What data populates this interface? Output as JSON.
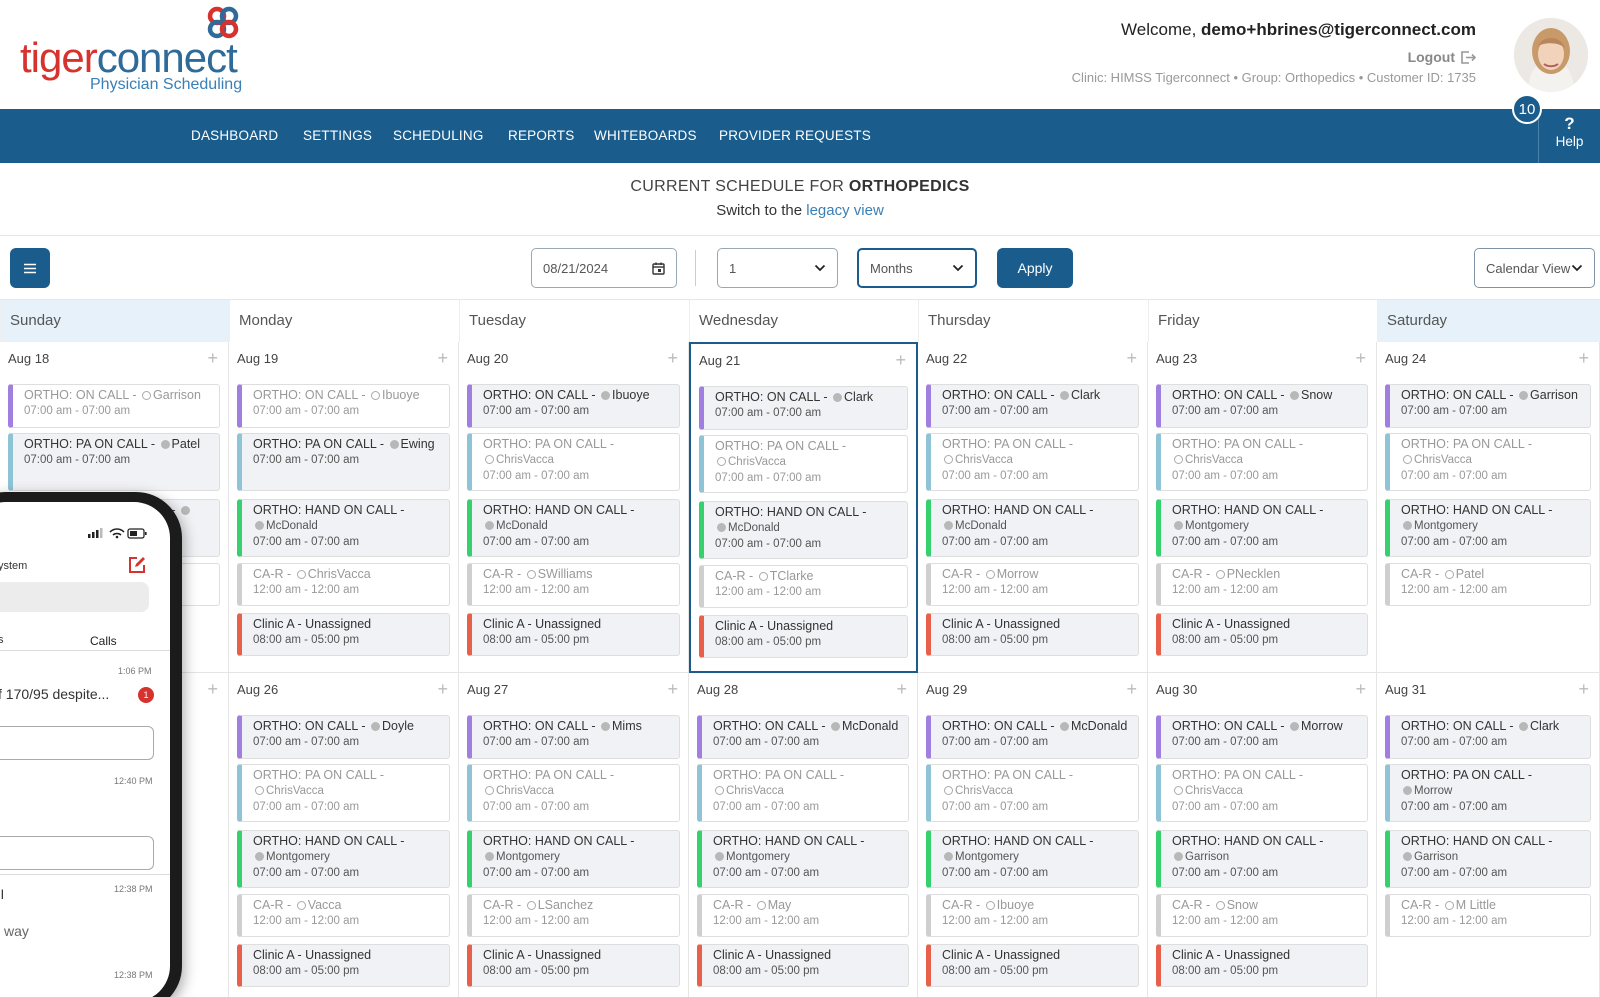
{
  "brand": {
    "name_part1": "tiger",
    "name_part2": "connect",
    "subtitle": "Physician Scheduling"
  },
  "user": {
    "welcome_prefix": "Welcome, ",
    "email": "demo+hbrines@tigerconnect.com",
    "logout_label": "Logout",
    "clinic_info": "Clinic: HIMSS Tigerconnect • Group: Orthopedics • Customer ID: 1735",
    "notification_count": "10"
  },
  "nav": {
    "items": [
      "DASHBOARD",
      "SETTINGS",
      "SCHEDULING",
      "REPORTS",
      "WHITEBOARDS",
      "PROVIDER REQUESTS"
    ],
    "help_label": "Help"
  },
  "page": {
    "title_prefix": "CURRENT SCHEDULE FOR ",
    "title_group": "ORTHOPEDICS",
    "switch_prefix": "Switch to the ",
    "switch_link": "legacy view"
  },
  "toolbar": {
    "date_value": "08/21/2024",
    "count_value": "1",
    "period_value": "Months",
    "apply_label": "Apply",
    "view_value": "Calendar View"
  },
  "colors": {
    "purple": "#a07fe0",
    "teal": "#8fc3d6",
    "green": "#37d06e",
    "gray": "#cfcfcf",
    "red": "#e8604a",
    "navy": "#1a5d8d"
  },
  "calendar": {
    "days": [
      "Sunday",
      "Monday",
      "Tuesday",
      "Wednesday",
      "Thursday",
      "Friday",
      "Saturday"
    ],
    "today_index": 3,
    "weeks": [
      [
        {
          "date": "Aug 18",
          "events": [
            {
              "title": "ORTHO: ON CALL -",
              "provider": "Garrison",
              "inline": true,
              "time": "07:00 am - 07:00 am",
              "color": "purple",
              "style": "empty",
              "dot": "o"
            },
            {
              "title": "ORTHO: PA ON CALL -",
              "provider": "Patel",
              "inline": true,
              "time": "07:00 am - 07:00 am",
              "color": "teal",
              "style": "filled",
              "dot": "g"
            },
            {
              "title": "ORTHO: HAND ON CALL -",
              "provider": "",
              "inline": true,
              "time": "",
              "color": "green",
              "style": "filled",
              "dot": "g"
            },
            {
              "title": "",
              "provider": "",
              "inline": true,
              "time": "",
              "color": "gray",
              "style": "empty",
              "dot": "o"
            }
          ]
        },
        {
          "date": "Aug 19",
          "events": [
            {
              "title": "ORTHO: ON CALL -",
              "provider": "Ibuoye",
              "inline": true,
              "time": "07:00 am - 07:00 am",
              "color": "purple",
              "style": "empty",
              "dot": "o"
            },
            {
              "title": "ORTHO: PA ON CALL -",
              "provider": "Ewing",
              "inline": true,
              "time": "07:00 am - 07:00 am",
              "color": "teal",
              "style": "filled",
              "dot": "g"
            },
            {
              "title": "ORTHO: HAND ON CALL -",
              "provider": "McDonald",
              "inline": false,
              "time": "07:00 am - 07:00 am",
              "color": "green",
              "style": "filled",
              "dot": "g"
            },
            {
              "title": "CA-R -",
              "provider": "ChrisVacca",
              "inline": true,
              "time": "12:00 am - 12:00 am",
              "color": "gray",
              "style": "empty",
              "dot": "o"
            },
            {
              "title": "Clinic A - Unassigned",
              "provider": "",
              "inline": true,
              "time": "08:00 am - 05:00 pm",
              "color": "red",
              "style": "filled",
              "dot": ""
            }
          ]
        },
        {
          "date": "Aug 20",
          "events": [
            {
              "title": "ORTHO: ON CALL -",
              "provider": "Ibuoye",
              "inline": true,
              "time": "07:00 am - 07:00 am",
              "color": "purple",
              "style": "filled",
              "dot": "g"
            },
            {
              "title": "ORTHO: PA ON CALL -",
              "provider": "ChrisVacca",
              "inline": false,
              "time": "07:00 am - 07:00 am",
              "color": "teal",
              "style": "empty",
              "dot": "o"
            },
            {
              "title": "ORTHO: HAND ON CALL -",
              "provider": "McDonald",
              "inline": false,
              "time": "07:00 am - 07:00 am",
              "color": "green",
              "style": "filled",
              "dot": "g"
            },
            {
              "title": "CA-R -",
              "provider": "SWilliams",
              "inline": true,
              "time": "12:00 am - 12:00 am",
              "color": "gray",
              "style": "empty",
              "dot": "o"
            },
            {
              "title": "Clinic A - Unassigned",
              "provider": "",
              "inline": true,
              "time": "08:00 am - 05:00 pm",
              "color": "red",
              "style": "filled",
              "dot": ""
            }
          ]
        },
        {
          "date": "Aug 21",
          "events": [
            {
              "title": "ORTHO: ON CALL -",
              "provider": "Clark",
              "inline": true,
              "time": "07:00 am - 07:00 am",
              "color": "purple",
              "style": "filled",
              "dot": "g"
            },
            {
              "title": "ORTHO: PA ON CALL -",
              "provider": "ChrisVacca",
              "inline": false,
              "time": "07:00 am - 07:00 am",
              "color": "teal",
              "style": "empty",
              "dot": "o"
            },
            {
              "title": "ORTHO: HAND ON CALL -",
              "provider": "McDonald",
              "inline": false,
              "time": "07:00 am - 07:00 am",
              "color": "green",
              "style": "filled",
              "dot": "g"
            },
            {
              "title": "CA-R -",
              "provider": "TClarke",
              "inline": true,
              "time": "12:00 am - 12:00 am",
              "color": "gray",
              "style": "empty",
              "dot": "o"
            },
            {
              "title": "Clinic A - Unassigned",
              "provider": "",
              "inline": true,
              "time": "08:00 am - 05:00 pm",
              "color": "red",
              "style": "filled",
              "dot": ""
            }
          ]
        },
        {
          "date": "Aug 22",
          "events": [
            {
              "title": "ORTHO: ON CALL -",
              "provider": "Clark",
              "inline": true,
              "time": "07:00 am - 07:00 am",
              "color": "purple",
              "style": "filled",
              "dot": "g"
            },
            {
              "title": "ORTHO: PA ON CALL -",
              "provider": "ChrisVacca",
              "inline": false,
              "time": "07:00 am - 07:00 am",
              "color": "teal",
              "style": "empty",
              "dot": "o"
            },
            {
              "title": "ORTHO: HAND ON CALL -",
              "provider": "McDonald",
              "inline": false,
              "time": "07:00 am - 07:00 am",
              "color": "green",
              "style": "filled",
              "dot": "g"
            },
            {
              "title": "CA-R -",
              "provider": "Morrow",
              "inline": true,
              "time": "12:00 am - 12:00 am",
              "color": "gray",
              "style": "empty",
              "dot": "o"
            },
            {
              "title": "Clinic A - Unassigned",
              "provider": "",
              "inline": true,
              "time": "08:00 am - 05:00 pm",
              "color": "red",
              "style": "filled",
              "dot": ""
            }
          ]
        },
        {
          "date": "Aug 23",
          "events": [
            {
              "title": "ORTHO: ON CALL -",
              "provider": "Snow",
              "inline": true,
              "time": "07:00 am - 07:00 am",
              "color": "purple",
              "style": "filled",
              "dot": "g"
            },
            {
              "title": "ORTHO: PA ON CALL -",
              "provider": "ChrisVacca",
              "inline": false,
              "time": "07:00 am - 07:00 am",
              "color": "teal",
              "style": "empty",
              "dot": "o"
            },
            {
              "title": "ORTHO: HAND ON CALL -",
              "provider": "Montgomery",
              "inline": false,
              "time": "07:00 am - 07:00 am",
              "color": "green",
              "style": "filled",
              "dot": "g"
            },
            {
              "title": "CA-R -",
              "provider": "PNecklen",
              "inline": true,
              "time": "12:00 am - 12:00 am",
              "color": "gray",
              "style": "empty",
              "dot": "o"
            },
            {
              "title": "Clinic A - Unassigned",
              "provider": "",
              "inline": true,
              "time": "08:00 am - 05:00 pm",
              "color": "red",
              "style": "filled",
              "dot": ""
            }
          ]
        },
        {
          "date": "Aug 24",
          "events": [
            {
              "title": "ORTHO: ON CALL -",
              "provider": "Garrison",
              "inline": true,
              "time": "07:00 am - 07:00 am",
              "color": "purple",
              "style": "filled",
              "dot": "g"
            },
            {
              "title": "ORTHO: PA ON CALL -",
              "provider": "ChrisVacca",
              "inline": false,
              "time": "07:00 am - 07:00 am",
              "color": "teal",
              "style": "empty",
              "dot": "o"
            },
            {
              "title": "ORTHO: HAND ON CALL -",
              "provider": "Montgomery",
              "inline": false,
              "time": "07:00 am - 07:00 am",
              "color": "green",
              "style": "filled",
              "dot": "g"
            },
            {
              "title": "CA-R -",
              "provider": "Patel",
              "inline": true,
              "time": "12:00 am - 12:00 am",
              "color": "gray",
              "style": "empty",
              "dot": "o"
            }
          ]
        }
      ],
      [
        {
          "date": "",
          "events": []
        },
        {
          "date": "Aug 26",
          "events": [
            {
              "title": "ORTHO: ON CALL -",
              "provider": "Doyle",
              "inline": true,
              "time": "07:00 am - 07:00 am",
              "color": "purple",
              "style": "filled",
              "dot": "g"
            },
            {
              "title": "ORTHO: PA ON CALL -",
              "provider": "ChrisVacca",
              "inline": false,
              "time": "07:00 am - 07:00 am",
              "color": "teal",
              "style": "empty",
              "dot": "o"
            },
            {
              "title": "ORTHO: HAND ON CALL -",
              "provider": "Montgomery",
              "inline": false,
              "time": "07:00 am - 07:00 am",
              "color": "green",
              "style": "filled",
              "dot": "g"
            },
            {
              "title": "CA-R -",
              "provider": "Vacca",
              "inline": true,
              "time": "12:00 am - 12:00 am",
              "color": "gray",
              "style": "empty",
              "dot": "o"
            },
            {
              "title": "Clinic A - Unassigned",
              "provider": "",
              "inline": true,
              "time": "08:00 am - 05:00 pm",
              "color": "red",
              "style": "filled",
              "dot": ""
            }
          ]
        },
        {
          "date": "Aug 27",
          "events": [
            {
              "title": "ORTHO: ON CALL -",
              "provider": "Mims",
              "inline": true,
              "time": "07:00 am - 07:00 am",
              "color": "purple",
              "style": "filled",
              "dot": "g"
            },
            {
              "title": "ORTHO: PA ON CALL -",
              "provider": "ChrisVacca",
              "inline": false,
              "time": "07:00 am - 07:00 am",
              "color": "teal",
              "style": "empty",
              "dot": "o"
            },
            {
              "title": "ORTHO: HAND ON CALL -",
              "provider": "Montgomery",
              "inline": false,
              "time": "07:00 am - 07:00 am",
              "color": "green",
              "style": "filled",
              "dot": "g"
            },
            {
              "title": "CA-R -",
              "provider": "LSanchez",
              "inline": true,
              "time": "12:00 am - 12:00 am",
              "color": "gray",
              "style": "empty",
              "dot": "o"
            },
            {
              "title": "Clinic A - Unassigned",
              "provider": "",
              "inline": true,
              "time": "08:00 am - 05:00 pm",
              "color": "red",
              "style": "filled",
              "dot": ""
            }
          ]
        },
        {
          "date": "Aug 28",
          "events": [
            {
              "title": "ORTHO: ON CALL -",
              "provider": "McDonald",
              "inline": true,
              "time": "07:00 am - 07:00 am",
              "color": "purple",
              "style": "filled",
              "dot": "g"
            },
            {
              "title": "ORTHO: PA ON CALL -",
              "provider": "ChrisVacca",
              "inline": false,
              "time": "07:00 am - 07:00 am",
              "color": "teal",
              "style": "empty",
              "dot": "o"
            },
            {
              "title": "ORTHO: HAND ON CALL -",
              "provider": "Montgomery",
              "inline": false,
              "time": "07:00 am - 07:00 am",
              "color": "green",
              "style": "filled",
              "dot": "g"
            },
            {
              "title": "CA-R -",
              "provider": "May",
              "inline": true,
              "time": "12:00 am - 12:00 am",
              "color": "gray",
              "style": "empty",
              "dot": "o"
            },
            {
              "title": "Clinic A - Unassigned",
              "provider": "",
              "inline": true,
              "time": "08:00 am - 05:00 pm",
              "color": "red",
              "style": "filled",
              "dot": ""
            }
          ]
        },
        {
          "date": "Aug 29",
          "events": [
            {
              "title": "ORTHO: ON CALL -",
              "provider": "McDonald",
              "inline": true,
              "time": "07:00 am - 07:00 am",
              "color": "purple",
              "style": "filled",
              "dot": "g"
            },
            {
              "title": "ORTHO: PA ON CALL -",
              "provider": "ChrisVacca",
              "inline": false,
              "time": "07:00 am - 07:00 am",
              "color": "teal",
              "style": "empty",
              "dot": "o"
            },
            {
              "title": "ORTHO: HAND ON CALL -",
              "provider": "Montgomery",
              "inline": false,
              "time": "07:00 am - 07:00 am",
              "color": "green",
              "style": "filled",
              "dot": "g"
            },
            {
              "title": "CA-R -",
              "provider": "Ibuoye",
              "inline": true,
              "time": "12:00 am - 12:00 am",
              "color": "gray",
              "style": "empty",
              "dot": "o"
            },
            {
              "title": "Clinic A - Unassigned",
              "provider": "",
              "inline": true,
              "time": "08:00 am - 05:00 pm",
              "color": "red",
              "style": "filled",
              "dot": ""
            }
          ]
        },
        {
          "date": "Aug 30",
          "events": [
            {
              "title": "ORTHO: ON CALL -",
              "provider": "Morrow",
              "inline": true,
              "time": "07:00 am - 07:00 am",
              "color": "purple",
              "style": "filled",
              "dot": "g"
            },
            {
              "title": "ORTHO: PA ON CALL -",
              "provider": "ChrisVacca",
              "inline": false,
              "time": "07:00 am - 07:00 am",
              "color": "teal",
              "style": "empty",
              "dot": "o"
            },
            {
              "title": "ORTHO: HAND ON CALL -",
              "provider": "Garrison",
              "inline": false,
              "time": "07:00 am - 07:00 am",
              "color": "green",
              "style": "filled",
              "dot": "g"
            },
            {
              "title": "CA-R -",
              "provider": "Snow",
              "inline": true,
              "time": "12:00 am - 12:00 am",
              "color": "gray",
              "style": "empty",
              "dot": "o"
            },
            {
              "title": "Clinic A - Unassigned",
              "provider": "",
              "inline": true,
              "time": "08:00 am - 05:00 pm",
              "color": "red",
              "style": "filled",
              "dot": ""
            }
          ]
        },
        {
          "date": "Aug 31",
          "events": [
            {
              "title": "ORTHO: ON CALL -",
              "provider": "Clark",
              "inline": true,
              "time": "07:00 am - 07:00 am",
              "color": "purple",
              "style": "filled",
              "dot": "g"
            },
            {
              "title": "ORTHO: PA ON CALL -",
              "provider": "Morrow",
              "inline": false,
              "time": "07:00 am - 07:00 am",
              "color": "teal",
              "style": "filled",
              "dot": "g"
            },
            {
              "title": "ORTHO: HAND ON CALL -",
              "provider": "Garrison",
              "inline": false,
              "time": "07:00 am - 07:00 am",
              "color": "green",
              "style": "filled",
              "dot": "g"
            },
            {
              "title": "CA-R -",
              "provider": "M Little",
              "inline": true,
              "time": "12:00 am - 12:00 am",
              "color": "gray",
              "style": "empty",
              "dot": "o"
            }
          ]
        }
      ]
    ]
  },
  "phone": {
    "header_label": "ystem",
    "tab_label_left": "s",
    "tab_label_right": "Calls",
    "messages": [
      {
        "time": "1:06 PM",
        "preview": "f 170/95 despite...",
        "badge": "1"
      },
      {
        "time": "12:40 PM",
        "preview": "",
        "badge": ""
      },
      {
        "time": "12:38 PM",
        "preview": "ll",
        "badge": ""
      },
      {
        "time": "12:38 PM",
        "preview": "way",
        "badge": ""
      }
    ]
  }
}
